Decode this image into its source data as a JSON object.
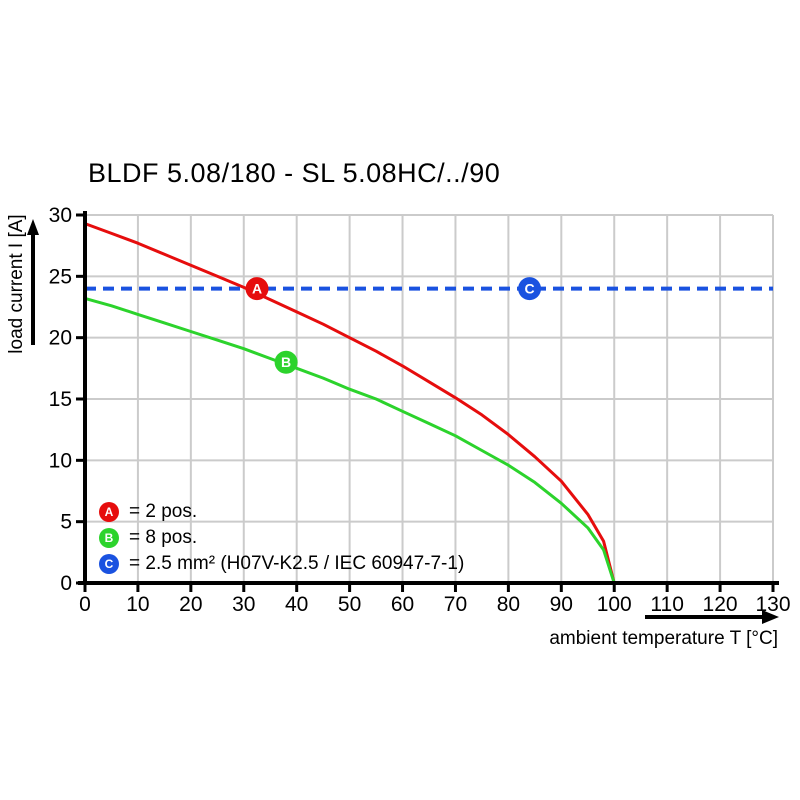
{
  "title": "BLDF 5.08/180 - SL 5.08HC/../90",
  "colors": {
    "red": "#e60d0d",
    "green": "#2cd32c",
    "blue": "#1a52e0",
    "grid": "#cbcbcb",
    "axis": "#000000",
    "marker_letter": "#ffffff"
  },
  "legend": {
    "items": [
      {
        "label": "A",
        "text": "= 2 pos.",
        "color": "#e60d0d"
      },
      {
        "label": "B",
        "text": "= 8 pos.",
        "color": "#2cd32c"
      },
      {
        "label": "C",
        "text": "= 2.5 mm² (H07V-K2.5 / IEC 60947-7-1)",
        "color": "#1a52e0"
      }
    ]
  },
  "chart_data": {
    "type": "line",
    "title": "BLDF 5.08/180 - SL 5.08HC/../90",
    "xlabel": "ambient temperature T [°C]",
    "ylabel": "load current I [A]",
    "xlim": [
      0,
      130
    ],
    "ylim": [
      0,
      30
    ],
    "xticks": [
      0,
      10,
      20,
      30,
      40,
      50,
      60,
      70,
      80,
      90,
      100,
      110,
      120,
      130
    ],
    "yticks": [
      0,
      5,
      10,
      15,
      20,
      25,
      30
    ],
    "grid": true,
    "legend_position": "bottom-left-inside",
    "series": [
      {
        "name": "A = 2 pos.",
        "type": "curve",
        "color": "#e60d0d",
        "x": [
          0,
          5,
          10,
          15,
          20,
          25,
          30,
          35,
          40,
          45,
          50,
          55,
          60,
          65,
          70,
          75,
          80,
          85,
          90,
          95,
          98,
          100
        ],
        "y": [
          29.3,
          28.5,
          27.7,
          26.8,
          25.9,
          25.0,
          24.1,
          23.1,
          22.1,
          21.1,
          20.0,
          18.9,
          17.7,
          16.4,
          15.1,
          13.7,
          12.1,
          10.3,
          8.3,
          5.6,
          3.4,
          0
        ]
      },
      {
        "name": "B = 8 pos.",
        "type": "curve",
        "color": "#2cd32c",
        "x": [
          0,
          5,
          10,
          15,
          20,
          25,
          30,
          35,
          40,
          45,
          50,
          55,
          60,
          65,
          70,
          75,
          80,
          85,
          90,
          95,
          98,
          100
        ],
        "y": [
          23.2,
          22.6,
          21.9,
          21.2,
          20.5,
          19.8,
          19.1,
          18.3,
          17.5,
          16.7,
          15.8,
          15.0,
          14.0,
          13.0,
          12.0,
          10.8,
          9.6,
          8.2,
          6.5,
          4.5,
          2.7,
          0
        ]
      },
      {
        "name": "C = 2.5 mm² (H07V-K2.5 / IEC 60947-7-1)",
        "type": "hline",
        "color": "#1a52e0",
        "y": 24,
        "dash": [
          11,
          7
        ]
      }
    ],
    "markers": [
      {
        "label": "A",
        "x": 32.5,
        "y": 24,
        "color": "#e60d0d"
      },
      {
        "label": "B",
        "x": 38,
        "y": 18,
        "color": "#2cd32c"
      },
      {
        "label": "C",
        "x": 84,
        "y": 24,
        "color": "#1a52e0"
      }
    ]
  }
}
